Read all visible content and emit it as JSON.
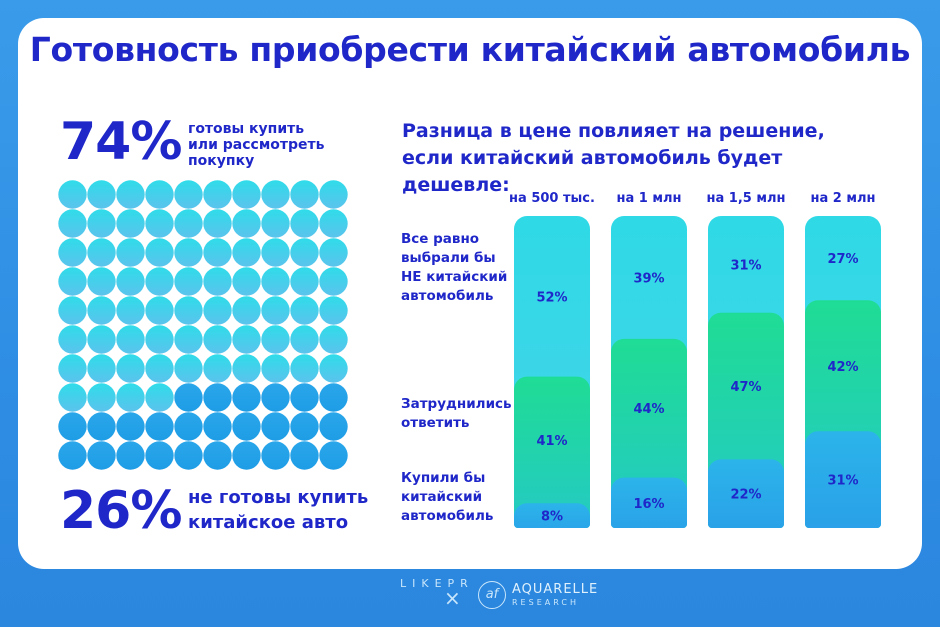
{
  "title": "Готовность приобрести китайский автомобиль",
  "left": {
    "ready_pct": "74%",
    "ready_line1": "готовы купить",
    "ready_line2": "или рассмотреть",
    "ready_line3": "покупку",
    "notready_pct": "26%",
    "notready_line1": "не готовы купить",
    "notready_line2": "китайское авто"
  },
  "right": {
    "subtitle_line1": "Разница в цене повлияет на решение,",
    "subtitle_line2": "если китайский автомобиль будет дешевле:",
    "labels": {
      "nonchinese": [
        "Все равно",
        "выбрали бы",
        "НЕ китайский",
        "автомобиль"
      ],
      "undecided": [
        "Затруднились",
        "ответить"
      ],
      "chinese": [
        "Купили бы",
        "китайский",
        "автомобиль"
      ]
    }
  },
  "colors": {
    "title": "#1f27c9",
    "background": "#3a9bea",
    "nonchinese": "#2fd9e6",
    "undecided": "#1fdc95",
    "chinese": "#2a9ee8",
    "dot_ready": "#2fdcea",
    "dot_notready": "#1e9de6"
  },
  "footer": {
    "logo_left": "LIKEPR",
    "logo_right_name": "AQUARELLE",
    "logo_right_sub": "RESEARCH",
    "logo_right_icon": "aquarelle-logo-icon"
  },
  "chart_data": [
    {
      "type": "waffle",
      "grid": [
        10,
        10
      ],
      "series": [
        {
          "name": "готовы купить или рассмотреть покупку",
          "value": 74
        },
        {
          "name": "не готовы купить китайское авто",
          "value": 26
        }
      ]
    },
    {
      "type": "bar",
      "stacked": true,
      "unit": "%",
      "categories": [
        "на 500 тыс.",
        "на 1 млн",
        "на 1,5 млн",
        "на 2 млн"
      ],
      "series": [
        {
          "name": "Купили бы китайский автомобиль",
          "values": [
            8,
            16,
            22,
            31
          ]
        },
        {
          "name": "Затруднились ответить",
          "values": [
            41,
            44,
            47,
            42
          ]
        },
        {
          "name": "Все равно выбрали бы НЕ китайский автомобиль",
          "values": [
            52,
            39,
            31,
            27
          ]
        }
      ],
      "ylim": [
        0,
        100
      ]
    }
  ]
}
